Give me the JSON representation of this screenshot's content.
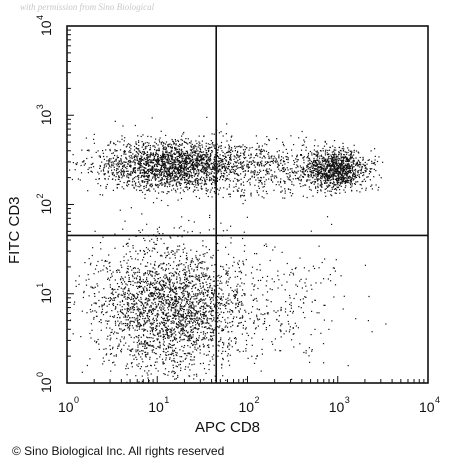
{
  "watermark": "with permission from Sino Biological",
  "copyright": "© Sino Biological Inc. All rights reserved",
  "chart_data": {
    "type": "scatter",
    "xlabel": "APC CD8",
    "ylabel": "FITC CD3",
    "x_scale": "log",
    "y_scale": "log",
    "xlim": [
      1,
      10000
    ],
    "ylim": [
      1,
      10000
    ],
    "x_ticks": [
      {
        "base": "10",
        "exp": "0"
      },
      {
        "base": "10",
        "exp": "1"
      },
      {
        "base": "10",
        "exp": "2"
      },
      {
        "base": "10",
        "exp": "3"
      },
      {
        "base": "10",
        "exp": "4"
      }
    ],
    "y_ticks": [
      {
        "base": "10",
        "exp": "0"
      },
      {
        "base": "10",
        "exp": "1"
      },
      {
        "base": "10",
        "exp": "2"
      },
      {
        "base": "10",
        "exp": "3"
      },
      {
        "base": "10",
        "exp": "4"
      }
    ],
    "gates": {
      "x": 45,
      "y": 45
    },
    "grid": false,
    "point_color": "#111111",
    "populations": [
      {
        "x_center": 15,
        "y_center": 280,
        "x_spread_decades": 0.42,
        "y_spread_decades": 0.14,
        "count": 2200
      },
      {
        "x_center": 950,
        "y_center": 250,
        "x_spread_decades": 0.17,
        "y_spread_decades": 0.11,
        "count": 1100
      },
      {
        "x_center": 180,
        "y_center": 250,
        "x_spread_decades": 0.35,
        "y_spread_decades": 0.15,
        "count": 450
      },
      {
        "x_center": 14,
        "y_center": 7,
        "x_spread_decades": 0.42,
        "y_spread_decades": 0.35,
        "count": 2600
      },
      {
        "x_center": 250,
        "y_center": 8,
        "x_spread_decades": 0.38,
        "y_spread_decades": 0.35,
        "count": 220
      }
    ]
  }
}
